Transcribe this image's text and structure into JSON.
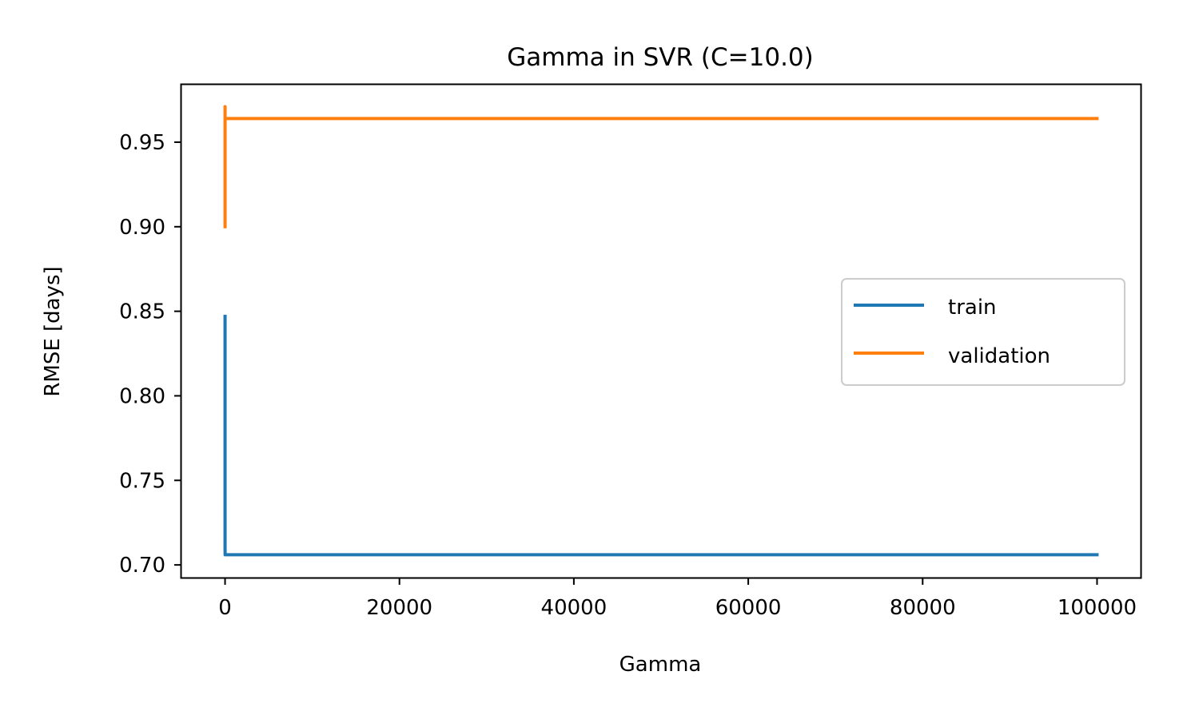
{
  "chart_data": {
    "type": "line",
    "title": "Gamma in SVR (C=10.0)",
    "xlabel": "Gamma",
    "ylabel": "RMSE [days]",
    "xlim": [
      -5000,
      105000
    ],
    "ylim": [
      0.6925,
      0.984
    ],
    "xticks": [
      0,
      20000,
      40000,
      60000,
      80000,
      100000
    ],
    "xtick_labels": [
      "0",
      "20000",
      "40000",
      "60000",
      "80000",
      "100000"
    ],
    "yticks": [
      0.7,
      0.75,
      0.8,
      0.85,
      0.9,
      0.95
    ],
    "ytick_labels": [
      "0.70",
      "0.75",
      "0.80",
      "0.85",
      "0.90",
      "0.95"
    ],
    "grid": false,
    "legend_position": "center-right",
    "series": [
      {
        "name": "train",
        "color": "#1f77b4",
        "x": [
          0.0001,
          0.001,
          0.01,
          0.1,
          1,
          10,
          100,
          1000,
          10000,
          100000
        ],
        "y": [
          0.847,
          0.83,
          0.79,
          0.74,
          0.71,
          0.706,
          0.706,
          0.706,
          0.706,
          0.706
        ]
      },
      {
        "name": "validation",
        "color": "#ff7f0e",
        "x": [
          0.0001,
          0.001,
          0.01,
          0.1,
          1,
          10,
          100,
          1000,
          10000,
          100000
        ],
        "y": [
          0.9,
          0.935,
          0.96,
          0.971,
          0.966,
          0.964,
          0.964,
          0.964,
          0.964,
          0.964
        ]
      }
    ]
  }
}
